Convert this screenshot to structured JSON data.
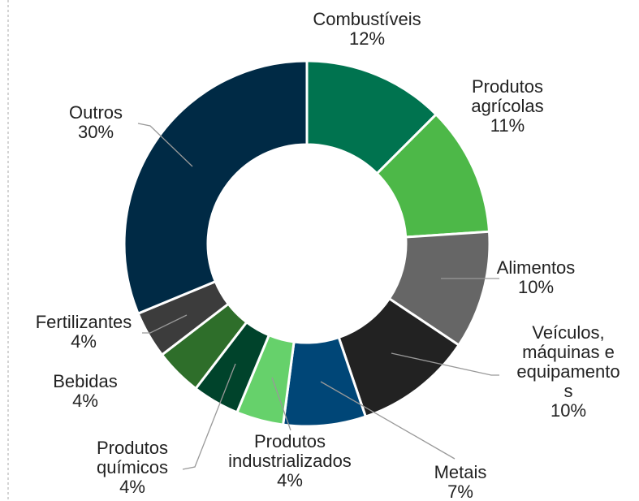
{
  "chart_data": {
    "type": "donut",
    "categories": [
      "Combustíveis",
      "Produtos agrícolas",
      "Alimentos",
      "Veículos, máquinas e equipamentos",
      "Metais",
      "Produtos industrializados",
      "Produtos químicos",
      "Bebidas",
      "Fertilizantes",
      "Outros"
    ],
    "values": [
      12,
      11,
      10,
      10,
      7,
      4,
      4,
      4,
      4,
      30
    ],
    "value_labels": [
      "12%",
      "11%",
      "10%",
      "10%",
      "7%",
      "4%",
      "4%",
      "4%",
      "4%",
      "30%"
    ],
    "colors": [
      "#00734f",
      "#4db848",
      "#666666",
      "#222222",
      "#004677",
      "#66d16b",
      "#00432b",
      "#2e6e2a",
      "#3c3c3c",
      "#002a45"
    ]
  }
}
